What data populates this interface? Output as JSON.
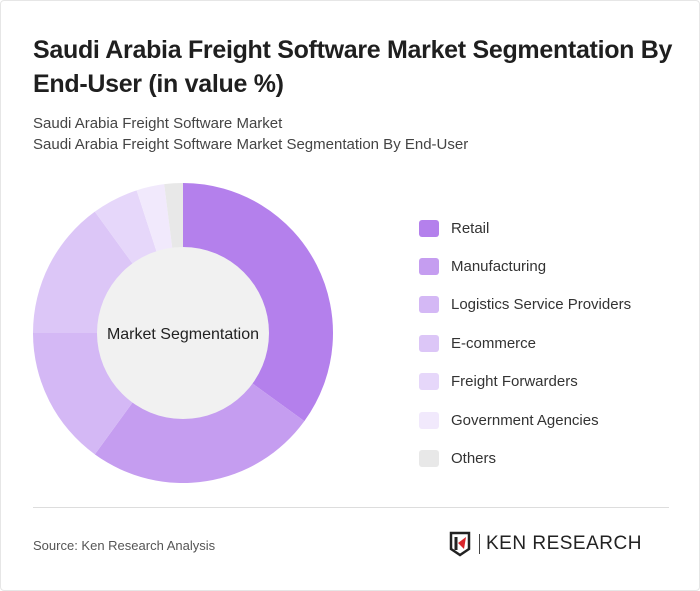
{
  "header": {
    "title": "Saudi Arabia Freight Software Market Segmentation By End-User (in value %)",
    "subtitle1": "Saudi Arabia Freight Software Market",
    "subtitle2": "Saudi Arabia Freight Software Market Segmentation By End-User"
  },
  "chart_data": {
    "type": "pie",
    "donut": true,
    "center_label": "Market Segmentation",
    "legend_position": "right",
    "categories": [
      "Retail",
      "Manufacturing",
      "Logistics Service Providers",
      "E-commerce",
      "Freight Forwarders",
      "Government Agencies",
      "Others"
    ],
    "values": [
      35,
      25,
      15,
      15,
      5,
      3,
      2
    ],
    "colors": [
      "#b480ec",
      "#c59df0",
      "#d4b8f5",
      "#dcc6f7",
      "#e6d7fa",
      "#f1e9fc",
      "#e8e8e8"
    ]
  },
  "footer": {
    "source": "Source: Ken Research Analysis",
    "logo_text": "KEN RESEARCH"
  }
}
